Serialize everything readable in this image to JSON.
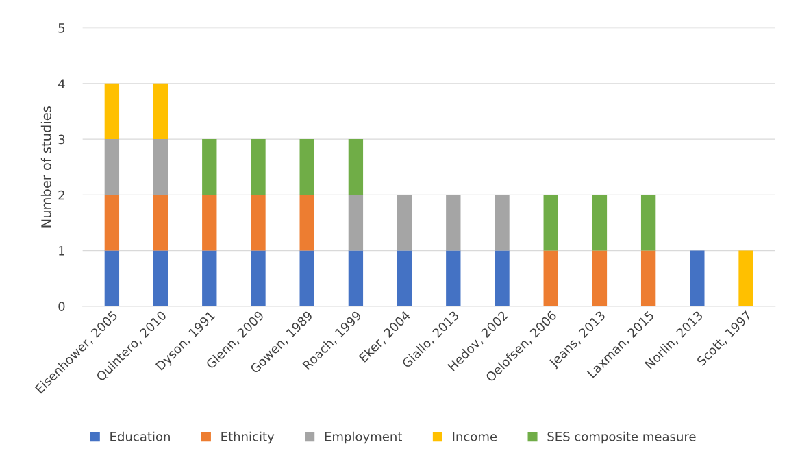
{
  "chart_data": {
    "type": "bar",
    "stacked": true,
    "ylabel": "Number of studies",
    "categories": [
      "Eisenhower, 2005",
      "Quintero, 2010",
      "Dyson, 1991",
      "Glenn, 2009",
      "Gowen, 1989",
      "Roach, 1999",
      "Eker, 2004",
      "Giallo, 2013",
      "Hedov, 2002",
      "Oelofsen, 2006",
      "Jeans, 2013",
      "Laxman, 2015",
      "Norlin, 2013",
      "Scott, 1997"
    ],
    "series": [
      {
        "name": "Education",
        "color": "#4472c4",
        "values": [
          1,
          1,
          1,
          1,
          1,
          1,
          1,
          1,
          1,
          0,
          0,
          0,
          1,
          0
        ]
      },
      {
        "name": "Ethnicity",
        "color": "#ed7d31",
        "values": [
          1,
          1,
          1,
          1,
          1,
          0,
          0,
          0,
          0,
          1,
          1,
          1,
          0,
          0
        ]
      },
      {
        "name": "Employment",
        "color": "#a5a5a5",
        "values": [
          1,
          1,
          0,
          0,
          0,
          1,
          1,
          1,
          1,
          0,
          0,
          0,
          0,
          0
        ]
      },
      {
        "name": "Income",
        "color": "#ffc000",
        "values": [
          1,
          1,
          0,
          0,
          0,
          0,
          0,
          0,
          0,
          0,
          0,
          0,
          0,
          1
        ]
      },
      {
        "name": "SES composite measure",
        "color": "#70ad47",
        "values": [
          0,
          0,
          1,
          1,
          1,
          1,
          0,
          0,
          0,
          1,
          1,
          1,
          0,
          0
        ]
      }
    ],
    "ylim": [
      0,
      5
    ],
    "yticks": [
      0,
      1,
      2,
      3,
      4,
      5
    ],
    "grid": "y",
    "legend": "bottom"
  }
}
